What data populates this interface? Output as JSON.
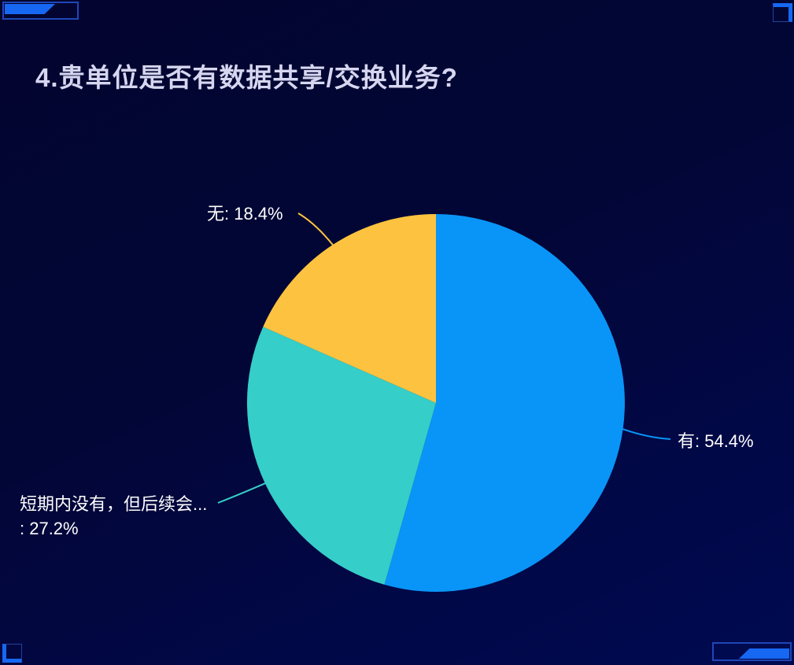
{
  "page": {
    "background_top_color": "#03052f",
    "background_bottom_color": "#000a50",
    "decoration_fill_color": "#1668f2",
    "decoration_border_color": "#1f47b8"
  },
  "chart_data": {
    "type": "pie",
    "title": "4.贵单位是否有数据共享/交换业务?",
    "title_color": "#d6d6f0",
    "label_color": "#ffffff",
    "legend": false,
    "start_angle": "top",
    "direction": "clockwise",
    "slices": [
      {
        "name": "有",
        "value_pct": 54.4,
        "color": "#0995f7",
        "label_lines": [
          "有: 54.4%"
        ]
      },
      {
        "name": "短期内没有，但后续会...",
        "value_pct": 27.2,
        "color": "#36cec9",
        "label_lines": [
          "短期内没有，但后续会...",
          ": 27.2%"
        ]
      },
      {
        "name": "无",
        "value_pct": 18.4,
        "color": "#fdc340",
        "label_lines": [
          "无: 18.4%"
        ]
      }
    ]
  }
}
